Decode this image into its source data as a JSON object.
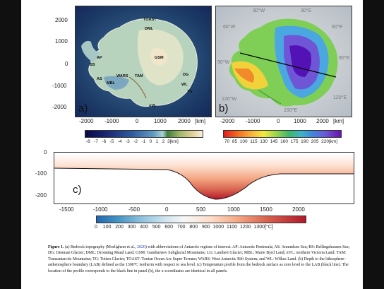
{
  "panel_a": {
    "letter": "a)",
    "y_ticks": [
      "2000",
      "1000",
      "0",
      "-1000",
      "-2000"
    ],
    "x_ticks": [
      "-2000",
      "-1000",
      "0",
      "1000",
      "2000"
    ],
    "x_unit": "[km]",
    "labels": [
      "TOAST",
      "DML",
      "GSM",
      "AP",
      "BS",
      "AS",
      "MBL",
      "WARS",
      "TAM",
      "DG",
      "WL",
      "TG",
      "nVL"
    ],
    "colorbar_ticks": [
      "-8",
      "-7",
      "-6",
      "-5",
      "-4",
      "-3",
      "-2",
      "-1",
      "0",
      "1",
      "2",
      "3[km]"
    ]
  },
  "panel_b": {
    "letter": "b)",
    "x_ticks": [
      "-2000",
      "-1000",
      "0",
      "1000",
      "2000"
    ],
    "x_unit": "[km]",
    "colorbar_ticks": [
      "70",
      "85",
      "100",
      "115",
      "130",
      "145",
      "160",
      "175",
      "190",
      "205",
      "220[km]"
    ],
    "corner_labels": [
      "30°W",
      "30°E",
      "60°E",
      "90°E",
      "120°E",
      "150°E",
      "120°W",
      "90°W",
      "60°W"
    ]
  },
  "panel_c": {
    "letter": "c)",
    "y_ticks": [
      "0",
      "-100",
      "-200"
    ],
    "x_ticks": [
      "-1500",
      "-1000",
      "-500",
      "0",
      "500",
      "1000",
      "1500",
      "2000"
    ],
    "colorbar_ticks": [
      "0",
      "100",
      "200",
      "300",
      "400",
      "500",
      "600",
      "700",
      "800",
      "900",
      "1000",
      "1100",
      "1200",
      "1300[°C]"
    ]
  },
  "caption": {
    "figure_label": "Figure 1.",
    "part1": " (a) Bedrock topography (Morlighem et al., ",
    "citation_year": "2020",
    "part2": ") with abbreviations of Antarctic regions of interest. AP: Antarctic Peninsula; AS: Amundsen Sea; BS: Bellingshausen Sea; DG: Denman Glacier; DML: Dronning Maud Land; GSM: Gamburtsev Subglacial Mountains; LG: Lambert Glacier; MBL: Marie Byrd Land; nVL: northern Victoria Land; TAM: Transantarctic Mountains; TG: Totten Glacier; TOAST: Tonian Ocean Arc Super Terrane; WARS: West Antarctic Rift System; and WL: Wilkes Land. (b) Depth to the lithosphere–asthenosphere boundary (LAB) defined as the 1300°C isotherm with respect to sea level. (c) Temperature profile from the bedrock surface as zero level to the LAB (black line). The location of the profile corresponds to the black line in panel (b), the x-coordinates are identical in all panels."
  },
  "colors": {
    "ocean_deep": "#1c3a66",
    "land_low": "#8fb9c9",
    "land_high": "#e7e3c9",
    "lab_shallow": "#f03a2a",
    "lab_deep": "#5a12c9",
    "temp_cold": "#1f6db5",
    "temp_hot": "#b2111e"
  }
}
